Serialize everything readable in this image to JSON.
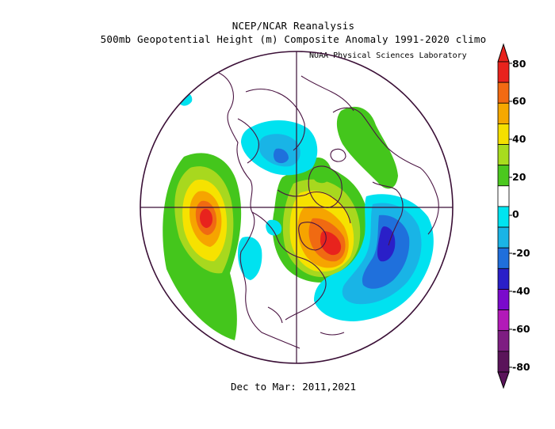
{
  "header": {
    "title_line1": "NCEP/NCAR Reanalysis",
    "title_line2": "500mb Geopotential Height (m) Composite Anomaly 1991-2020 climo",
    "credit": "NOAA Physical Sciences Laboratory"
  },
  "footer": {
    "period": "Dec to Mar: 2011,2021"
  },
  "colorbar": {
    "labels": [
      "80",
      "60",
      "40",
      "20",
      "0",
      "-20",
      "-40",
      "-60",
      "-80"
    ],
    "colors": [
      "#e8231d",
      "#f26a12",
      "#f5a800",
      "#f5e000",
      "#a8dc1e",
      "#4bc81e",
      "#ffffff",
      "#00e4f0",
      "#1ab4e6",
      "#1f6fdc",
      "#2a1fc8",
      "#7a0acc",
      "#b21ab8",
      "#7e1e82",
      "#5a145a"
    ]
  },
  "map": {
    "projection": "north-polar-stereographic",
    "colors": {
      "coastline": "#4a1442",
      "boundary": "#3a0f36",
      "green": "#44c61c",
      "lightgreen": "#a8d81e",
      "yellow": "#f6e200",
      "orange": "#f6a400",
      "darkorange": "#f06a12",
      "red": "#e8231d",
      "cyan": "#00e2f0",
      "lightblue": "#19b4e6",
      "blue": "#1f70dc",
      "indigo": "#2a1fc8"
    }
  }
}
